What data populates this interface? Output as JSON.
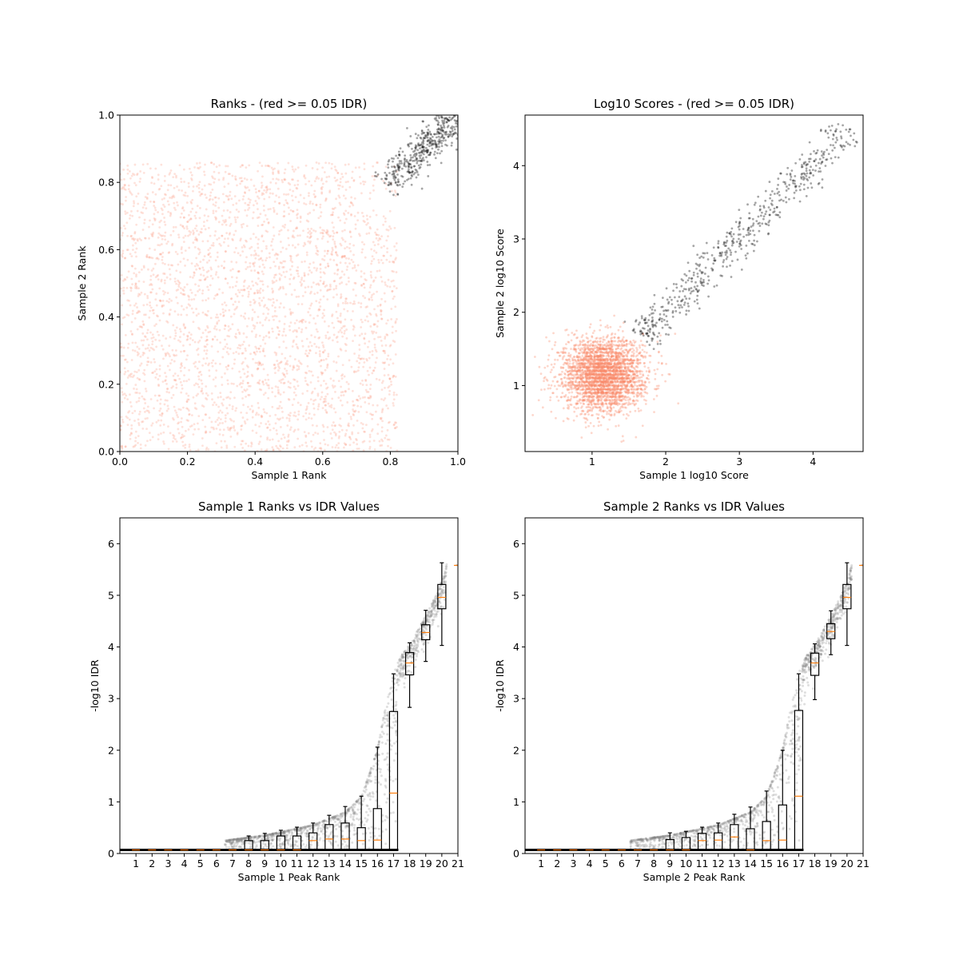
{
  "chart_data": [
    {
      "type": "scatter",
      "title": "Ranks - (red >= 0.05 IDR)",
      "xlabel": "Sample 1 Rank",
      "ylabel": "Sample 2 Rank",
      "xlim": [
        0,
        1
      ],
      "ylim": [
        0,
        1
      ],
      "xticks": [
        "0.0",
        "0.2",
        "0.4",
        "0.6",
        "0.8",
        "1.0"
      ],
      "yticks": [
        "0.0",
        "0.2",
        "0.4",
        "0.6",
        "0.8",
        "1.0"
      ],
      "grid": false,
      "colors": {
        "idr_high": "#fa8c6e",
        "idr_low": "#000000"
      }
    },
    {
      "type": "scatter",
      "title": "Log10 Scores - (red >= 0.05 IDR)",
      "xlabel": "Sample 1 log10 Score",
      "ylabel": "Sample 2 log10 Score",
      "xlim": [
        0.09,
        4.68
      ],
      "ylim": [
        0.1,
        4.69
      ],
      "xticks": [
        "1",
        "2",
        "3",
        "4"
      ],
      "yticks": [
        "1",
        "2",
        "3",
        "4"
      ],
      "grid": false,
      "colors": {
        "idr_high": "#fa8c6e",
        "idr_low": "#000000"
      }
    },
    {
      "type": "box",
      "title": "Sample 1 Ranks vs IDR Values",
      "xlabel": "Sample 1 Peak Rank",
      "ylabel": "-log10 IDR",
      "xlim": [
        0,
        21
      ],
      "ylim": [
        0,
        6.5
      ],
      "xticks": [
        "1",
        "2",
        "3",
        "4",
        "5",
        "6",
        "7",
        "8",
        "9",
        "10",
        "11",
        "12",
        "13",
        "14",
        "15",
        "16",
        "17",
        "18",
        "19",
        "20",
        "21"
      ],
      "yticks": [
        "0",
        "1",
        "2",
        "3",
        "4",
        "5",
        "6"
      ],
      "grid": false,
      "colors": {
        "box": "#000000",
        "median": "#ff7f0e",
        "points": "#808080"
      },
      "boxes": [
        {
          "q1": 0.07,
          "median": 0.07,
          "q3": 0.07,
          "whislo": 0.07,
          "whishi": 0.07
        },
        {
          "q1": 0.07,
          "median": 0.07,
          "q3": 0.07,
          "whislo": 0.07,
          "whishi": 0.07
        },
        {
          "q1": 0.07,
          "median": 0.07,
          "q3": 0.07,
          "whislo": 0.07,
          "whishi": 0.07
        },
        {
          "q1": 0.07,
          "median": 0.07,
          "q3": 0.07,
          "whislo": 0.07,
          "whishi": 0.07
        },
        {
          "q1": 0.07,
          "median": 0.07,
          "q3": 0.07,
          "whislo": 0.07,
          "whishi": 0.07
        },
        {
          "q1": 0.07,
          "median": 0.07,
          "q3": 0.07,
          "whislo": 0.07,
          "whishi": 0.07
        },
        {
          "q1": 0.07,
          "median": 0.07,
          "q3": 0.07,
          "whislo": 0.07,
          "whishi": 0.07
        },
        {
          "q1": 0.07,
          "median": 0.07,
          "q3": 0.25,
          "whislo": 0.07,
          "whishi": 0.34
        },
        {
          "q1": 0.07,
          "median": 0.07,
          "q3": 0.25,
          "whislo": 0.07,
          "whishi": 0.39
        },
        {
          "q1": 0.07,
          "median": 0.07,
          "q3": 0.34,
          "whislo": 0.07,
          "whishi": 0.45
        },
        {
          "q1": 0.07,
          "median": 0.07,
          "q3": 0.34,
          "whislo": 0.07,
          "whishi": 0.51
        },
        {
          "q1": 0.07,
          "median": 0.25,
          "q3": 0.4,
          "whislo": 0.07,
          "whishi": 0.59
        },
        {
          "q1": 0.07,
          "median": 0.28,
          "q3": 0.56,
          "whislo": 0.07,
          "whishi": 0.74
        },
        {
          "q1": 0.07,
          "median": 0.28,
          "q3": 0.59,
          "whislo": 0.07,
          "whishi": 0.91
        },
        {
          "q1": 0.07,
          "median": 0.25,
          "q3": 0.5,
          "whislo": 0.07,
          "whishi": 1.11
        },
        {
          "q1": 0.07,
          "median": 0.26,
          "q3": 0.87,
          "whislo": 0.07,
          "whishi": 2.06
        },
        {
          "q1": 0.07,
          "median": 1.17,
          "q3": 2.75,
          "whislo": 0.07,
          "whishi": 3.48
        },
        {
          "q1": 3.46,
          "median": 3.69,
          "q3": 3.89,
          "whislo": 2.83,
          "whishi": 4.08
        },
        {
          "q1": 4.14,
          "median": 4.28,
          "q3": 4.43,
          "whislo": 3.72,
          "whishi": 4.71
        },
        {
          "q1": 4.74,
          "median": 4.96,
          "q3": 5.21,
          "whislo": 4.03,
          "whishi": 5.63
        },
        {
          "q1": 5.58,
          "median": 5.58,
          "q3": 5.58,
          "whislo": 5.58,
          "whishi": 5.58
        }
      ]
    },
    {
      "type": "box",
      "title": "Sample 2 Ranks vs IDR Values",
      "xlabel": "Sample 2 Peak Rank",
      "ylabel": "-log10 IDR",
      "xlim": [
        0,
        21
      ],
      "ylim": [
        0,
        6.5
      ],
      "xticks": [
        "1",
        "2",
        "3",
        "4",
        "5",
        "6",
        "7",
        "8",
        "9",
        "10",
        "11",
        "12",
        "13",
        "14",
        "15",
        "16",
        "17",
        "18",
        "19",
        "20",
        "21"
      ],
      "yticks": [
        "0",
        "1",
        "2",
        "3",
        "4",
        "5",
        "6"
      ],
      "grid": false,
      "colors": {
        "box": "#000000",
        "median": "#ff7f0e",
        "points": "#808080"
      },
      "boxes": [
        {
          "q1": 0.07,
          "median": 0.07,
          "q3": 0.07,
          "whislo": 0.07,
          "whishi": 0.07
        },
        {
          "q1": 0.07,
          "median": 0.07,
          "q3": 0.07,
          "whislo": 0.07,
          "whishi": 0.07
        },
        {
          "q1": 0.07,
          "median": 0.07,
          "q3": 0.07,
          "whislo": 0.07,
          "whishi": 0.07
        },
        {
          "q1": 0.07,
          "median": 0.07,
          "q3": 0.07,
          "whislo": 0.07,
          "whishi": 0.07
        },
        {
          "q1": 0.07,
          "median": 0.07,
          "q3": 0.07,
          "whislo": 0.07,
          "whishi": 0.07
        },
        {
          "q1": 0.07,
          "median": 0.07,
          "q3": 0.07,
          "whislo": 0.07,
          "whishi": 0.07
        },
        {
          "q1": 0.07,
          "median": 0.07,
          "q3": 0.07,
          "whislo": 0.07,
          "whishi": 0.07
        },
        {
          "q1": 0.07,
          "median": 0.07,
          "q3": 0.07,
          "whislo": 0.07,
          "whishi": 0.07
        },
        {
          "q1": 0.07,
          "median": 0.07,
          "q3": 0.27,
          "whislo": 0.07,
          "whishi": 0.4
        },
        {
          "q1": 0.07,
          "median": 0.07,
          "q3": 0.31,
          "whislo": 0.07,
          "whishi": 0.43
        },
        {
          "q1": 0.07,
          "median": 0.25,
          "q3": 0.39,
          "whislo": 0.07,
          "whishi": 0.51
        },
        {
          "q1": 0.07,
          "median": 0.26,
          "q3": 0.4,
          "whislo": 0.07,
          "whishi": 0.59
        },
        {
          "q1": 0.07,
          "median": 0.32,
          "q3": 0.56,
          "whislo": 0.07,
          "whishi": 0.76
        },
        {
          "q1": 0.07,
          "median": 0.07,
          "q3": 0.48,
          "whislo": 0.07,
          "whishi": 0.9
        },
        {
          "q1": 0.07,
          "median": 0.25,
          "q3": 0.62,
          "whislo": 0.07,
          "whishi": 1.21
        },
        {
          "q1": 0.07,
          "median": 0.26,
          "q3": 0.94,
          "whislo": 0.07,
          "whishi": 2.0
        },
        {
          "q1": 0.07,
          "median": 1.11,
          "q3": 2.77,
          "whislo": 0.07,
          "whishi": 3.48
        },
        {
          "q1": 3.45,
          "median": 3.69,
          "q3": 3.88,
          "whislo": 2.98,
          "whishi": 4.06
        },
        {
          "q1": 4.16,
          "median": 4.3,
          "q3": 4.45,
          "whislo": 3.85,
          "whishi": 4.7
        },
        {
          "q1": 4.74,
          "median": 4.96,
          "q3": 5.21,
          "whislo": 4.03,
          "whishi": 5.63
        },
        {
          "q1": 5.58,
          "median": 5.58,
          "q3": 5.58,
          "whislo": 5.58,
          "whishi": 5.58
        }
      ]
    }
  ]
}
